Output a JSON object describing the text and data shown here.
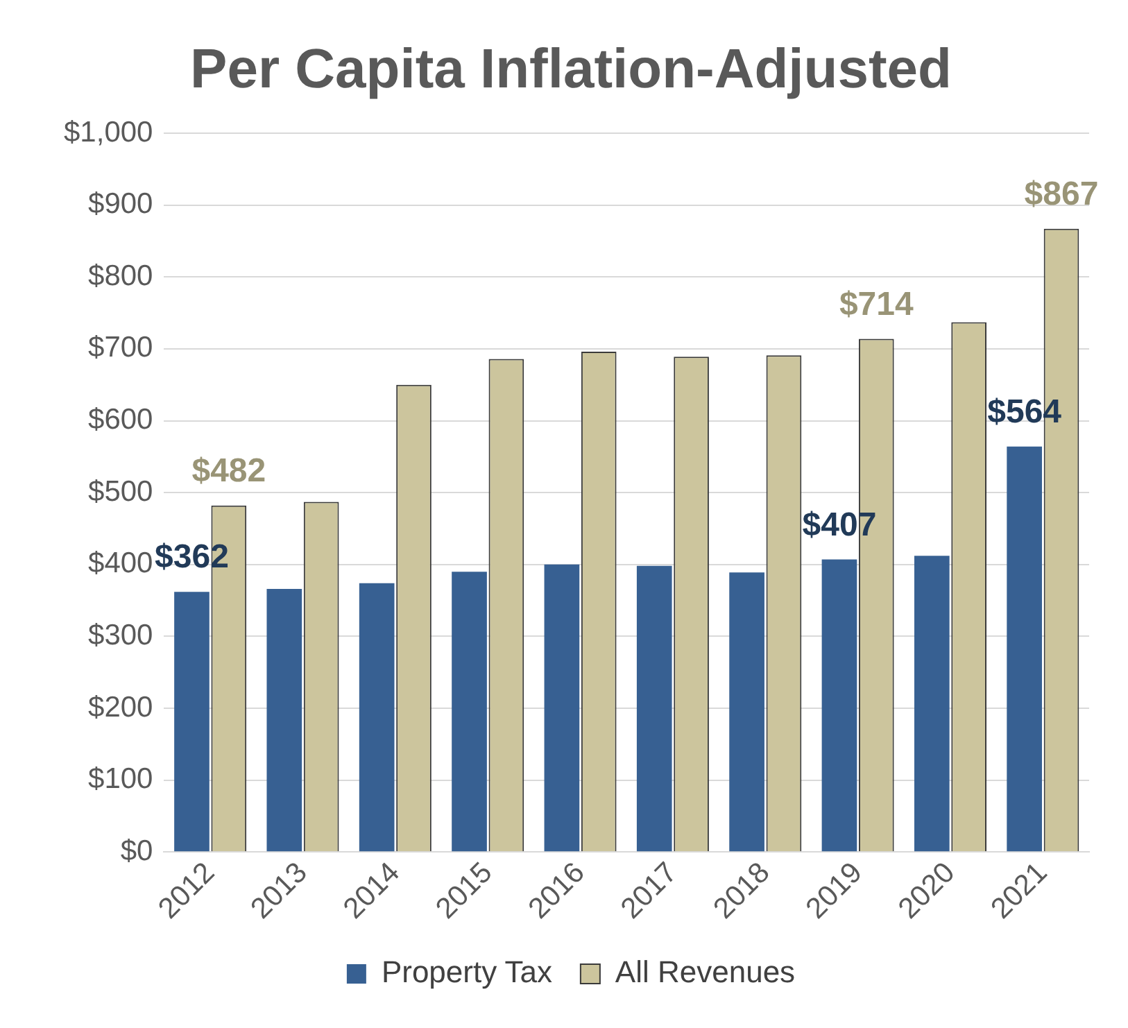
{
  "chart_data": {
    "type": "bar",
    "title": "Per Capita Inflation-Adjusted",
    "categories": [
      "2012",
      "2013",
      "2014",
      "2015",
      "2016",
      "2017",
      "2018",
      "2019",
      "2020",
      "2021"
    ],
    "series": [
      {
        "name": "Property Tax",
        "color": "#376092",
        "values": [
          362,
          366,
          374,
          390,
          400,
          398,
          389,
          407,
          412,
          564
        ],
        "value_labels": [
          "$362",
          null,
          null,
          null,
          null,
          null,
          null,
          "$407",
          null,
          "$564"
        ]
      },
      {
        "name": "All Revenues",
        "color": "#ccc59d",
        "values": [
          482,
          487,
          650,
          686,
          696,
          689,
          691,
          714,
          737,
          867
        ],
        "value_labels": [
          "$482",
          null,
          null,
          null,
          null,
          null,
          null,
          "$714",
          null,
          "$867"
        ]
      }
    ],
    "ylim": [
      0,
      1000
    ],
    "yticks": [
      {
        "value": 0,
        "label": "$0"
      },
      {
        "value": 100,
        "label": "$100"
      },
      {
        "value": 200,
        "label": "$200"
      },
      {
        "value": 300,
        "label": "$300"
      },
      {
        "value": 400,
        "label": "$400"
      },
      {
        "value": 500,
        "label": "$500"
      },
      {
        "value": 600,
        "label": "$600"
      },
      {
        "value": 700,
        "label": "$700"
      },
      {
        "value": 800,
        "label": "$800"
      },
      {
        "value": 900,
        "label": "$900"
      },
      {
        "value": 1000,
        "label": "$1,000"
      }
    ],
    "grid": "y",
    "legend": "bottom"
  }
}
